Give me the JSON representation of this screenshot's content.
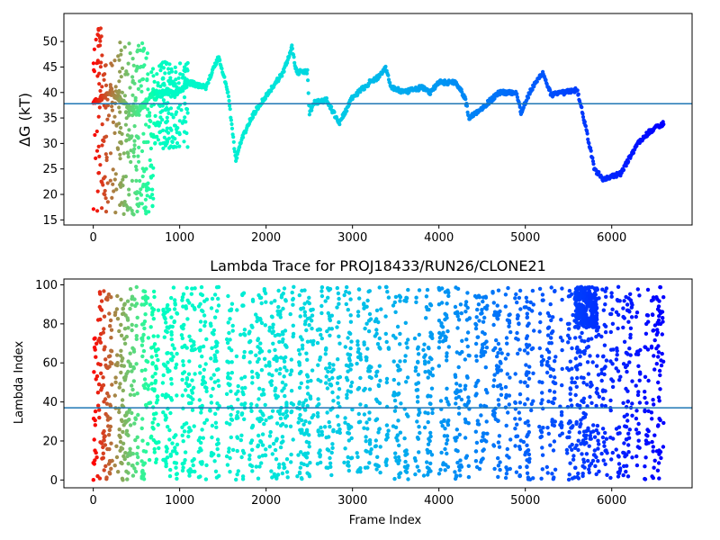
{
  "chart_data": [
    {
      "type": "scatter",
      "title": "",
      "xlabel": "",
      "ylabel": "ΔG (kT)",
      "xlim": [
        -340,
        6930
      ],
      "ylim": [
        14.0,
        55.5
      ],
      "xticks": [
        0,
        1000,
        2000,
        3000,
        4000,
        5000,
        6000
      ],
      "yticks": [
        15,
        20,
        25,
        30,
        35,
        40,
        45,
        50
      ],
      "colormap": "rainbow",
      "color_by": "time-since-first-visit",
      "hline": {
        "value": 37.8,
        "color": "#1f77b4"
      },
      "grid": false,
      "trajectory": {
        "x_range": [
          0,
          6600
        ],
        "y_anchors": [
          [
            0,
            38
          ],
          [
            200,
            40
          ],
          [
            500,
            36
          ],
          [
            700,
            40
          ],
          [
            1000,
            40
          ],
          [
            1100,
            42
          ],
          [
            1300,
            41
          ],
          [
            1450,
            47
          ],
          [
            1560,
            40
          ],
          [
            1650,
            26.5
          ],
          [
            1700,
            30
          ],
          [
            1800,
            34
          ],
          [
            1900,
            37
          ],
          [
            2200,
            44
          ],
          [
            2300,
            49
          ],
          [
            2350,
            44
          ],
          [
            2480,
            44
          ],
          [
            2500,
            36
          ],
          [
            2560,
            38
          ],
          [
            2700,
            38.5
          ],
          [
            2780,
            36
          ],
          [
            2850,
            34
          ],
          [
            3000,
            39
          ],
          [
            3200,
            42
          ],
          [
            3300,
            43
          ],
          [
            3380,
            45
          ],
          [
            3450,
            41
          ],
          [
            3600,
            40
          ],
          [
            3800,
            41
          ],
          [
            3900,
            40
          ],
          [
            4000,
            42
          ],
          [
            4200,
            42
          ],
          [
            4300,
            39
          ],
          [
            4350,
            35
          ],
          [
            4500,
            37
          ],
          [
            4700,
            40
          ],
          [
            4900,
            40
          ],
          [
            4950,
            36
          ],
          [
            5050,
            40
          ],
          [
            5200,
            44
          ],
          [
            5300,
            39.5
          ],
          [
            5600,
            40.5
          ],
          [
            5650,
            37
          ],
          [
            5800,
            25
          ],
          [
            5900,
            23
          ],
          [
            6100,
            24
          ],
          [
            6200,
            27
          ],
          [
            6300,
            30
          ],
          [
            6450,
            32.5
          ],
          [
            6600,
            34
          ]
        ]
      },
      "early_noise": [
        {
          "x_range": [
            0,
            150
          ],
          "y_range": [
            16.5,
            54
          ]
        },
        {
          "x_range": [
            150,
            700
          ],
          "y_range": [
            16,
            50
          ]
        },
        {
          "x_range": [
            700,
            1100
          ],
          "y_range": [
            29,
            46
          ]
        }
      ]
    },
    {
      "type": "scatter",
      "title": "Lambda Trace for PROJ18433/RUN26/CLONE21",
      "xlabel": "Frame Index",
      "ylabel": "Lambda Index",
      "xlim": [
        -340,
        6930
      ],
      "ylim": [
        -4,
        103
      ],
      "xticks": [
        0,
        1000,
        2000,
        3000,
        4000,
        5000,
        6000
      ],
      "yticks": [
        0,
        20,
        40,
        60,
        80,
        100
      ],
      "colormap": "rainbow",
      "color_by": "time-since-first-visit",
      "hline": {
        "value": 37,
        "color": "#1f77b4"
      },
      "grid": false,
      "x_range": [
        0,
        6600
      ],
      "y_range": [
        0,
        99
      ],
      "stripes": [
        [
          0,
          220
        ],
        [
          250,
          520
        ],
        [
          560,
          760
        ],
        [
          800,
          980
        ],
        [
          1020,
          1180
        ],
        [
          1220,
          1320
        ],
        [
          1350,
          1460
        ],
        [
          1540,
          1620
        ],
        [
          1650,
          1680
        ],
        [
          1700,
          1760
        ],
        [
          1800,
          1850
        ],
        [
          1880,
          2000
        ],
        [
          2030,
          2250
        ],
        [
          2280,
          2320
        ],
        [
          2360,
          2550
        ],
        [
          2590,
          2650
        ],
        [
          2680,
          2780
        ],
        [
          2820,
          2860
        ],
        [
          2900,
          3000
        ],
        [
          3050,
          3100
        ],
        [
          3130,
          3220
        ],
        [
          3260,
          3330
        ],
        [
          3380,
          3420
        ],
        [
          3470,
          3560
        ],
        [
          3600,
          3650
        ],
        [
          3720,
          3780
        ],
        [
          3820,
          3930
        ],
        [
          4000,
          4120
        ],
        [
          4180,
          4270
        ],
        [
          4300,
          4360
        ],
        [
          4420,
          4560
        ],
        [
          4620,
          4730
        ],
        [
          4770,
          4830
        ],
        [
          4880,
          4950
        ],
        [
          4980,
          5100
        ],
        [
          5160,
          5210
        ],
        [
          5250,
          5350
        ],
        [
          5400,
          5430
        ],
        [
          5480,
          5560
        ],
        [
          5570,
          5860
        ],
        [
          5880,
          5950
        ],
        [
          5980,
          6020
        ],
        [
          6050,
          6100
        ],
        [
          6130,
          6250
        ],
        [
          6280,
          6330
        ],
        [
          6380,
          6430
        ],
        [
          6460,
          6600
        ]
      ],
      "high_cluster": {
        "x_range": [
          5570,
          5830
        ],
        "y_range": [
          78,
          99
        ]
      }
    }
  ]
}
